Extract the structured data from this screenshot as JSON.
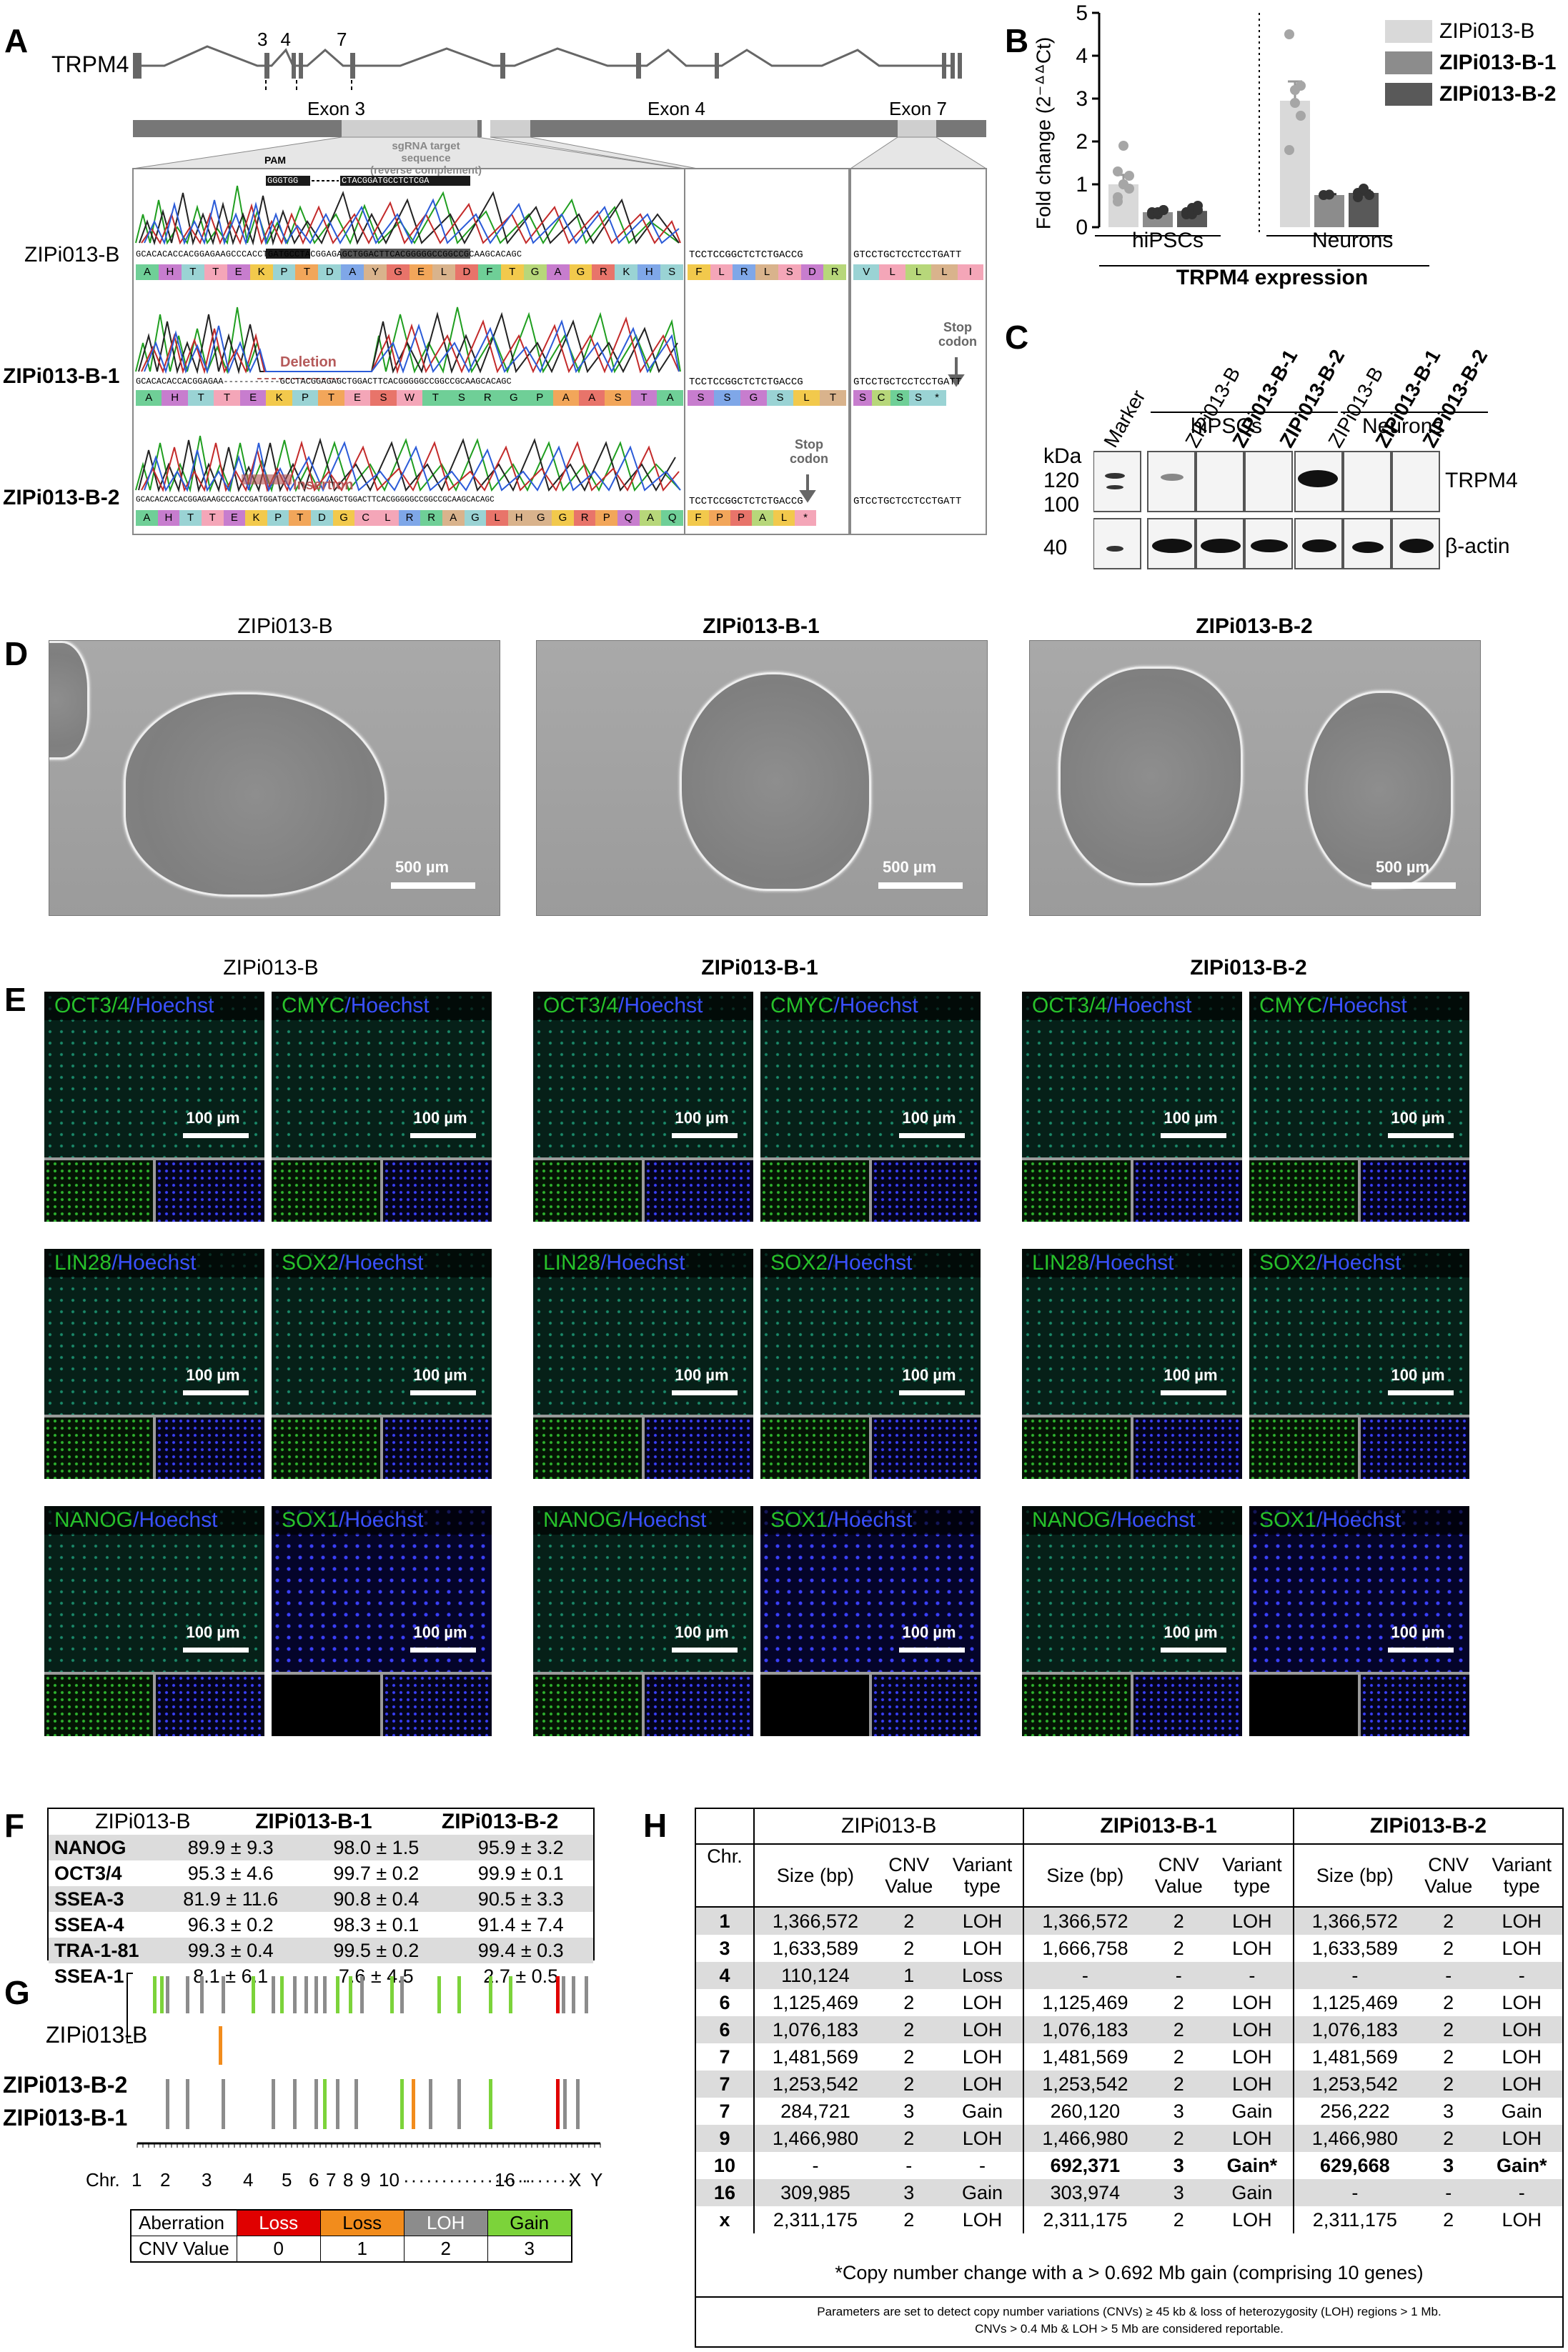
{
  "panel_labels": {
    "A": "A",
    "B": "B",
    "C": "C",
    "D": "D",
    "E": "E",
    "F": "F",
    "G": "G",
    "H": "H"
  },
  "panelA": {
    "gene": "TRPM4",
    "exon_nums": [
      "3",
      "4",
      "7"
    ],
    "exon_labels": [
      "Exon 3",
      "Exon 4",
      "Exon 7"
    ],
    "pam": "PAM",
    "sgrna_label_1": "sgRNA target sequence",
    "sgrna_label_2": "(reverse complement)",
    "pam_seq": "GGGTGG",
    "sgrna_seq": "CTACGGATGCCTCTCGA",
    "rows": [
      {
        "name": "ZIPi013-B",
        "seq1": "GCACACACCACGGAGAAGCCCACCTGATGCCTACGGAGAGCTGGACTTCACGGGGGCCGGCCGCAAGCACAGC",
        "seq2": "TCCTCCGGCTCTCTGACCG",
        "seq3": "GTCCTGCTCCTCCTGATT",
        "aa1": [
          "A",
          "H",
          "T",
          "T",
          "E",
          "K",
          "P",
          "T",
          "D",
          "A",
          "Y",
          "G",
          "E",
          "L",
          "D",
          "F",
          "T",
          "G",
          "A",
          "G",
          "R",
          "K",
          "H",
          "S"
        ],
        "aa2": [
          "F",
          "L",
          "R",
          "L",
          "S",
          "D",
          "R"
        ],
        "aa3": [
          "V",
          "L",
          "L",
          "L",
          "I"
        ]
      },
      {
        "name": "ZIPi013-B-1",
        "seq1": "GCACACACCACGGAGAA-----------GCCTACGGAGAGCTGGACTTCACGGGGGCCGGCCGCAAGCACAGC",
        "seq2": "TCCTCCGGCTCTCTGACCG",
        "seq3": "GTCCTGCTCCTCCTGATT",
        "aa1": [
          "A",
          "H",
          "T",
          "T",
          "E",
          "K",
          "P",
          "T",
          "E",
          "S",
          "W",
          "T",
          "S",
          "R",
          "G",
          "P",
          "A",
          "A",
          "S",
          "T",
          "A"
        ],
        "aa2": [
          "S",
          "S",
          "G",
          "S",
          "L",
          "T"
        ],
        "aa3": [
          "S",
          "C",
          "S",
          "S",
          "*"
        ],
        "annot": "Deletion",
        "stop": "Stop codon"
      },
      {
        "name": "ZIPi013-B-2",
        "seq1": "GCACACACCACGGAGAAGCCCACCGATGGATGCCTACGGAGAGCTGGACTTCACGGGGGCCGGCCGCAAGCACAGC",
        "seq2": "TCCTCCGGCTCTCTGACCG",
        "seq3": "GTCCTGCTCCTCCTGATT",
        "aa1": [
          "A",
          "H",
          "T",
          "T",
          "E",
          "K",
          "P",
          "T",
          "D",
          "G",
          "C",
          "L",
          "R",
          "R",
          "A",
          "G",
          "L",
          "H",
          "G",
          "G",
          "R",
          "P",
          "Q",
          "A",
          "Q"
        ],
        "aa2": [
          "F",
          "P",
          "P",
          "A",
          "L",
          "*"
        ],
        "annot": "Insertion",
        "stop": "Stop codon"
      }
    ]
  },
  "panelB": {
    "ylabel": "Fold change (2⁻ᐞᐞCt)",
    "yticks": [
      "0",
      "1",
      "2",
      "3",
      "4",
      "5"
    ],
    "groups": [
      "hiPSCs",
      "Neurons"
    ],
    "xlabel": "TRPM4 expression",
    "legend": [
      {
        "name": "ZIPi013-B",
        "color": "#d9d9d9",
        "bold": false
      },
      {
        "name": "ZIPi013-B-1",
        "color": "#8c8c8c",
        "bold": true
      },
      {
        "name": "ZIPi013-B-2",
        "color": "#595959",
        "bold": true
      }
    ]
  },
  "chart_data": {
    "type": "bar",
    "categories": [
      "hiPSCs",
      "Neurons"
    ],
    "series": [
      {
        "name": "ZIPi013-B",
        "values": [
          1.0,
          2.95
        ],
        "sem": [
          0.22,
          0.45
        ]
      },
      {
        "name": "ZIPi013-B-1",
        "values": [
          0.35,
          0.75
        ],
        "sem": [
          0.04,
          0.02
        ]
      },
      {
        "name": "ZIPi013-B-2",
        "values": [
          0.38,
          0.8
        ],
        "sem": [
          0.06,
          0.06
        ]
      }
    ],
    "points": [
      [
        [
          0.7,
          1.0,
          1.2,
          0.6,
          1.9,
          0.9,
          1.3,
          1.0
        ],
        [
          0.35,
          0.3,
          0.4,
          0.3,
          0.35,
          0.4
        ],
        [
          0.3,
          0.45,
          0.5,
          0.35,
          0.3,
          0.4
        ]
      ],
      [
        [
          4.5,
          3.2,
          2.6,
          1.8,
          2.9,
          3.3
        ],
        [
          0.75,
          0.76
        ],
        [
          0.8,
          0.85,
          0.75,
          0.7,
          0.9
        ]
      ]
    ],
    "xlabel": "TRPM4 expression",
    "ylabel": "Fold change (2⁻ᐞᐞCt)",
    "ylim": [
      0,
      5
    ],
    "grid": false,
    "legend": "top-right"
  },
  "panelC": {
    "lanes": [
      "Marker",
      "ZIPi013-B",
      "ZIPi013-B-1",
      "ZIPi013-B-2",
      "ZIPi013-B",
      "ZIPi013-B-1",
      "ZIPi013-B-2"
    ],
    "lane_bold": [
      false,
      false,
      true,
      true,
      false,
      true,
      true
    ],
    "groups": [
      "hiPSCs",
      "Neurons"
    ],
    "kda": "kDa",
    "mw": [
      "120",
      "100",
      "40"
    ],
    "targets": [
      "TRPM4",
      "β-actin"
    ]
  },
  "panelD": {
    "titles": [
      "ZIPi013-B",
      "ZIPi013-B-1",
      "ZIPi013-B-2"
    ],
    "scale": "500 µm"
  },
  "panelE": {
    "titles": [
      "ZIPi013-B",
      "ZIPi013-B-1",
      "ZIPi013-B-2"
    ],
    "markers": [
      [
        "OCT3/4",
        "CMYC"
      ],
      [
        "LIN28",
        "SOX2"
      ],
      [
        "NANOG",
        "SOX1"
      ]
    ],
    "counter": "Hoechst",
    "scale": "100 µm"
  },
  "panelF": {
    "header": [
      "",
      "ZIPi013-B",
      "ZIPi013-B-1",
      "ZIPi013-B-2"
    ],
    "rows": [
      [
        "NANOG",
        "89.9 ± 9.3",
        "98.0 ± 1.5",
        "95.9 ± 3.2"
      ],
      [
        "OCT3/4",
        "95.3 ± 4.6",
        "99.7 ± 0.2",
        "99.9 ± 0.1"
      ],
      [
        "SSEA-3",
        "81.9 ± 11.6",
        "90.8 ± 0.4",
        "90.5 ± 3.3"
      ],
      [
        "SSEA-4",
        "96.3 ± 0.2",
        "98.3 ± 0.1",
        "91.4 ± 7.4"
      ],
      [
        "TRA-1-81",
        "99.3 ± 0.4",
        "99.5 ± 0.2",
        "99.4 ± 0.3"
      ],
      [
        "SSEA-1",
        "8.1 ± 6.1",
        "7.6 ± 4.5",
        "2.7 ± 0.5"
      ]
    ]
  },
  "panelG": {
    "lines": [
      "ZIPi013-B",
      "ZIPi013-B-2",
      "ZIPi013-B-1"
    ],
    "chr_prefix": "Chr.",
    "chr_labels": [
      "1",
      "2",
      "3",
      "4",
      "5",
      "6",
      "7",
      "8",
      "9",
      "10",
      "16",
      "X",
      "Y"
    ],
    "legend_headers": [
      "Aberration",
      "Loss",
      "Loss",
      "LOH",
      "Gain"
    ],
    "legend_values": [
      "CNV Value",
      "0",
      "1",
      "2",
      "3"
    ],
    "legend_colors": [
      "#e00000",
      "#f28c1c",
      "#8c8c8c",
      "#7cd33a"
    ]
  },
  "panelH": {
    "lines": [
      "ZIPi013-B",
      "ZIPi013-B-1",
      "ZIPi013-B-2"
    ],
    "col_headers": [
      "Chr.",
      "Size (bp)",
      "CNV Value",
      "Variant type"
    ],
    "rows": [
      [
        "1",
        "1,366,572",
        "2",
        "LOH",
        "1,366,572",
        "2",
        "LOH",
        "1,366,572",
        "2",
        "LOH"
      ],
      [
        "3",
        "1,633,589",
        "2",
        "LOH",
        "1,666,758",
        "2",
        "LOH",
        "1,633,589",
        "2",
        "LOH"
      ],
      [
        "4",
        "110,124",
        "1",
        "Loss",
        "-",
        "-",
        "-",
        "-",
        "-",
        "-"
      ],
      [
        "6",
        "1,125,469",
        "2",
        "LOH",
        "1,125,469",
        "2",
        "LOH",
        "1,125,469",
        "2",
        "LOH"
      ],
      [
        "6",
        "1,076,183",
        "2",
        "LOH",
        "1,076,183",
        "2",
        "LOH",
        "1,076,183",
        "2",
        "LOH"
      ],
      [
        "7",
        "1,481,569",
        "2",
        "LOH",
        "1,481,569",
        "2",
        "LOH",
        "1,481,569",
        "2",
        "LOH"
      ],
      [
        "7",
        "1,253,542",
        "2",
        "LOH",
        "1,253,542",
        "2",
        "LOH",
        "1,253,542",
        "2",
        "LOH"
      ],
      [
        "7",
        "284,721",
        "3",
        "Gain",
        "260,120",
        "3",
        "Gain",
        "256,222",
        "3",
        "Gain"
      ],
      [
        "9",
        "1,466,980",
        "2",
        "LOH",
        "1,466,980",
        "2",
        "LOH",
        "1,466,980",
        "2",
        "LOH"
      ],
      [
        "10",
        "-",
        "-",
        "-",
        "692,371",
        "3",
        "Gain*",
        "629,668",
        "3",
        "Gain*"
      ],
      [
        "16",
        "309,985",
        "3",
        "Gain",
        "303,974",
        "3",
        "Gain",
        "-",
        "-",
        "-"
      ],
      [
        "x",
        "2,311,175",
        "2",
        "LOH",
        "2,311,175",
        "2",
        "LOH",
        "2,311,175",
        "2",
        "LOH"
      ]
    ],
    "footnote": "*Copy number change with a > 0.692 Mb gain (comprising 10 genes)",
    "params1": "Parameters are set to detect copy number variations (CNVs) ≥ 45 kb & loss of heterozygosity (LOH) regions > 1 Mb.",
    "params2": "CNVs > 0.4 Mb & LOH > 5 Mb are considered reportable."
  }
}
